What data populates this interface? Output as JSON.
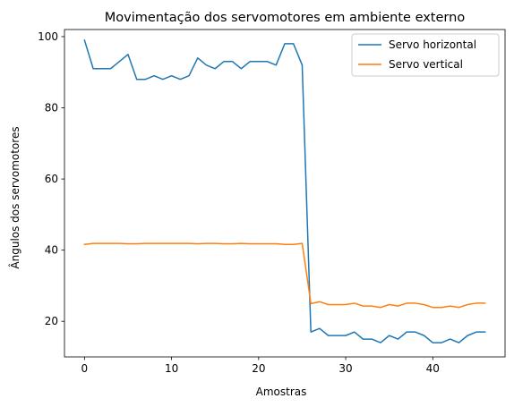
{
  "chart_data": {
    "type": "line",
    "title": "Movimentação dos servomotores em ambiente externo",
    "xlabel": "Amostras",
    "ylabel": "Ângulos dos servomotores",
    "xlim": [
      -2.3,
      48.3
    ],
    "ylim": [
      10,
      102
    ],
    "xticks": [
      0,
      10,
      20,
      30,
      40
    ],
    "yticks": [
      20,
      40,
      60,
      80,
      100
    ],
    "grid": false,
    "legend_position": "top-right",
    "series": [
      {
        "name": "Servo horizontal",
        "color": "#1f77b4",
        "x": [
          0,
          1,
          2,
          3,
          4,
          5,
          6,
          7,
          8,
          9,
          10,
          11,
          12,
          13,
          14,
          15,
          16,
          17,
          18,
          19,
          20,
          21,
          22,
          23,
          24,
          25,
          26,
          27,
          28,
          29,
          30,
          31,
          32,
          33,
          34,
          35,
          36,
          37,
          38,
          39,
          40,
          41,
          42,
          43,
          44,
          45,
          46
        ],
        "values": [
          99,
          91,
          91,
          91,
          93,
          95,
          88,
          88,
          89,
          88,
          89,
          88,
          89,
          94,
          92,
          91,
          93,
          93,
          91,
          93,
          93,
          93,
          92,
          98,
          98,
          92,
          17,
          18,
          16,
          16,
          16,
          17,
          15,
          15,
          14,
          16,
          15,
          17,
          17,
          16,
          14,
          14,
          15,
          14,
          16,
          17,
          17
        ]
      },
      {
        "name": "Servo vertical",
        "color": "#ff7f0e",
        "x": [
          0,
          1,
          2,
          3,
          4,
          5,
          6,
          7,
          8,
          9,
          10,
          11,
          12,
          13,
          14,
          15,
          16,
          17,
          18,
          19,
          20,
          21,
          22,
          23,
          24,
          25,
          26,
          27,
          28,
          29,
          30,
          31,
          32,
          33,
          34,
          35,
          36,
          37,
          38,
          39,
          40,
          41,
          42,
          43,
          44,
          45,
          46
        ],
        "values": [
          41.6,
          41.9,
          41.9,
          41.9,
          41.9,
          41.8,
          41.8,
          41.9,
          41.9,
          41.9,
          41.9,
          41.9,
          41.9,
          41.8,
          41.9,
          41.9,
          41.8,
          41.8,
          41.9,
          41.8,
          41.8,
          41.8,
          41.8,
          41.6,
          41.6,
          41.9,
          25.0,
          25.5,
          24.7,
          24.7,
          24.7,
          25.1,
          24.3,
          24.3,
          23.9,
          24.7,
          24.3,
          25.1,
          25.1,
          24.7,
          23.9,
          23.9,
          24.3,
          23.9,
          24.7,
          25.1,
          25.1
        ]
      }
    ]
  }
}
